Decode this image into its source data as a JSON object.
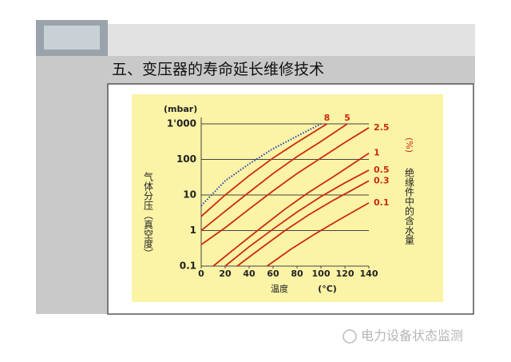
{
  "slide": {
    "title": "五、变压器的寿命延长维修技术",
    "watermark": "电力设备状态监测"
  },
  "chart_data": {
    "type": "line",
    "log_y": true,
    "y_unit": "(mbar)",
    "y_label": "气体分压（真空度）",
    "x_label": "温度",
    "x_unit": "(°C)",
    "right_label": "绝缘件中的含水量",
    "right_unit": "(%)",
    "xlim": [
      0,
      140
    ],
    "xticks": [
      0,
      20,
      40,
      60,
      80,
      100,
      120,
      140
    ],
    "ylim": [
      0.1,
      1000
    ],
    "yticks": [
      0.1,
      1,
      10,
      100,
      {
        "value": 1000,
        "label": "1'000"
      }
    ],
    "grid": true,
    "series": [
      {
        "color": "#2a3fb0",
        "dashed": true,
        "x": [
          0,
          20,
          40,
          60,
          80,
          100
        ],
        "values": [
          5,
          25,
          75,
          200,
          450,
          1000
        ]
      },
      {
        "name": "8",
        "color": "#cc2a10",
        "x": [
          0,
          20,
          40,
          60,
          80,
          105
        ],
        "values": [
          2.5,
          10,
          35,
          110,
          300,
          1000
        ]
      },
      {
        "name": "5",
        "color": "#cc2a10",
        "x": [
          0,
          20,
          40,
          60,
          80,
          100,
          122
        ],
        "values": [
          1,
          3.5,
          12,
          40,
          120,
          320,
          1000
        ]
      },
      {
        "name": "2.5",
        "color": "#cc2a10",
        "x": [
          0,
          20,
          40,
          60,
          80,
          100,
          120,
          140
        ],
        "values": [
          0.4,
          1.2,
          4,
          13,
          40,
          110,
          300,
          780
        ]
      },
      {
        "name": "1",
        "color": "#cc2a10",
        "x": [
          10,
          30,
          50,
          70,
          90,
          110,
          140
        ],
        "values": [
          0.1,
          0.35,
          1.2,
          4,
          12,
          32,
          150
        ]
      },
      {
        "name": "0.5",
        "color": "#cc2a10",
        "x": [
          20,
          40,
          60,
          80,
          100,
          120,
          140
        ],
        "values": [
          0.1,
          0.35,
          1.1,
          3.3,
          9,
          22,
          50
        ]
      },
      {
        "name": "0.3",
        "color": "#cc2a10",
        "x": [
          30,
          50,
          70,
          90,
          110,
          140
        ],
        "values": [
          0.1,
          0.32,
          1,
          2.8,
          7,
          25
        ]
      },
      {
        "name": "0.1",
        "color": "#cc2a10",
        "x": [
          55,
          75,
          95,
          115,
          140
        ],
        "values": [
          0.1,
          0.3,
          0.8,
          2,
          6
        ]
      }
    ]
  }
}
